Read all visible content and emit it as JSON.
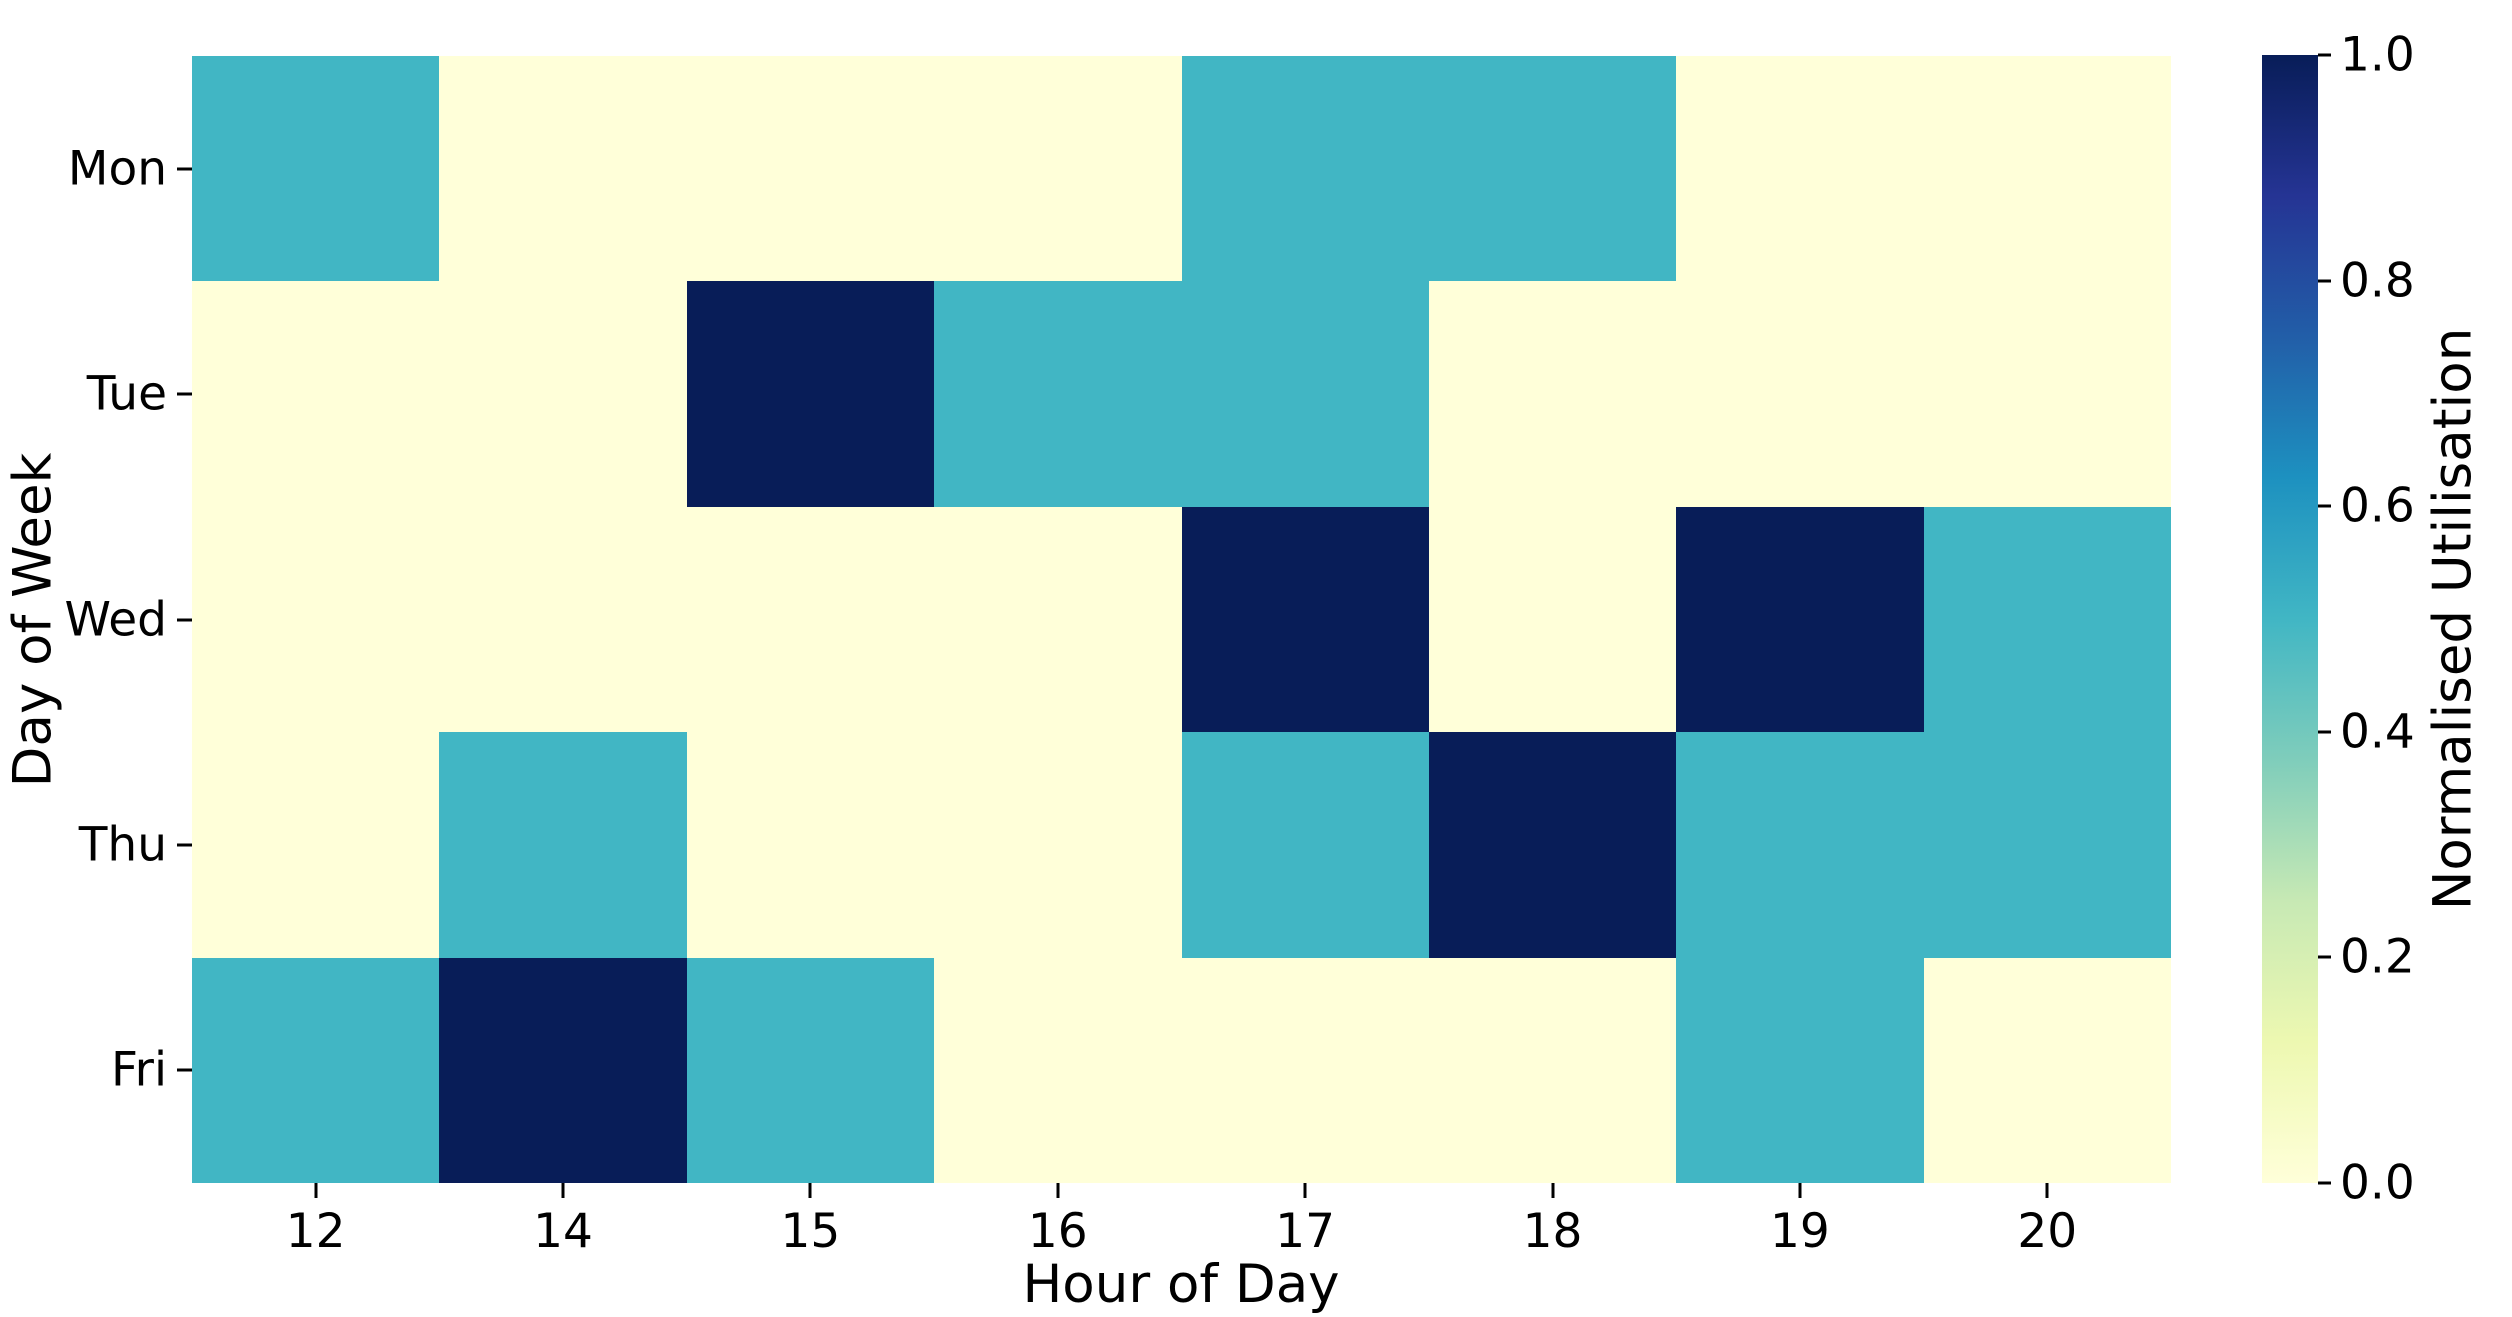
{
  "chart_data": {
    "type": "heatmap",
    "title": "",
    "xlabel": "Hour of Day",
    "ylabel": "Day of Week",
    "colormap": "YlGnBu",
    "x_tick_labels": [
      "12",
      "14",
      "15",
      "16",
      "17",
      "18",
      "19",
      "20"
    ],
    "y_tick_labels": [
      "Mon",
      "Tue",
      "Wed",
      "Thu",
      "Fri"
    ],
    "series": [
      {
        "name": "Mon",
        "values": [
          0.5,
          0.0,
          0.0,
          0.0,
          0.5,
          0.5,
          0.0,
          0.0
        ]
      },
      {
        "name": "Tue",
        "values": [
          0.0,
          0.0,
          1.0,
          0.5,
          0.5,
          0.0,
          0.0,
          0.0
        ]
      },
      {
        "name": "Wed",
        "values": [
          0.0,
          0.0,
          0.0,
          0.0,
          1.0,
          0.0,
          1.0,
          0.5
        ]
      },
      {
        "name": "Thu",
        "values": [
          0.0,
          0.5,
          0.0,
          0.0,
          0.5,
          1.0,
          0.5,
          0.5
        ]
      },
      {
        "name": "Fri",
        "values": [
          0.5,
          1.0,
          0.5,
          0.0,
          0.0,
          0.0,
          0.5,
          0.0
        ]
      }
    ],
    "value_colors": {
      "0": "#ffffd9",
      "0.5": "#41b6c4",
      "1": "#081d58"
    },
    "colorbar": {
      "label": "Normalised Utilisation",
      "tick_labels": [
        "1.0",
        "0.8",
        "0.6",
        "0.4",
        "0.2",
        "0.0"
      ],
      "min": 0.0,
      "max": 1.0
    },
    "layout": {
      "grid": "off",
      "legend": "none",
      "colorbar_position": "right",
      "background_color": "#ffffff",
      "text_color": "#000000"
    }
  }
}
